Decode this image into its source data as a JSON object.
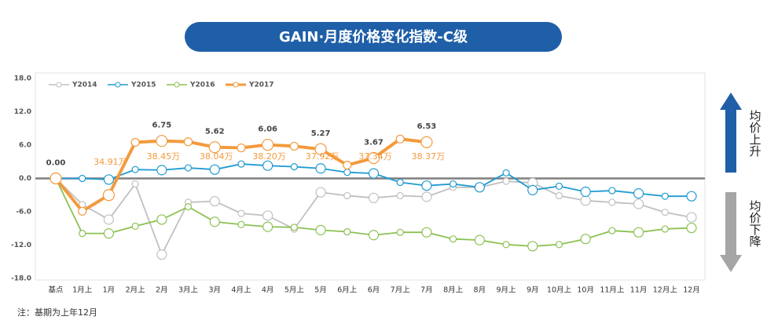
{
  "chart_data": {
    "type": "line",
    "title": "GAIN·月度价格变化指数-C级",
    "categories": [
      "基点",
      "1月上",
      "1月",
      "2月上",
      "2月",
      "3月上",
      "3月",
      "4月上",
      "4月",
      "5月上",
      "5月",
      "6月上",
      "6月",
      "7月上",
      "7月",
      "8月上",
      "8月",
      "9月上",
      "9月",
      "10月上",
      "10月",
      "11月上",
      "11月",
      "12月上",
      "12月"
    ],
    "series": [
      {
        "name": "Y2014",
        "color": "#c0c0c0",
        "values": [
          0,
          -4.7,
          -7.4,
          -1,
          -13.7,
          -4.3,
          -4.1,
          -6.3,
          -6.7,
          -9.1,
          -2.5,
          -3.1,
          -3.5,
          -3.1,
          -3.3,
          -1.6,
          -1.6,
          -0.5,
          -0.8,
          -3.1,
          -4,
          -4.3,
          -4.6,
          -6.1,
          -7
        ]
      },
      {
        "name": "Y2015",
        "color": "#1f9bd1",
        "values": [
          0,
          0,
          -0.2,
          1.6,
          1.5,
          1.9,
          1.6,
          2.6,
          2.3,
          2.1,
          1.8,
          1.1,
          0.9,
          -0.7,
          -1.3,
          -1,
          -1.6,
          1,
          -2.1,
          -1.4,
          -2.4,
          -2.2,
          -2.7,
          -3.2,
          -3.2
        ]
      },
      {
        "name": "Y2016",
        "color": "#8cc152",
        "values": [
          0,
          -9.9,
          -9.9,
          -8.6,
          -7.4,
          -5.1,
          -7.8,
          -8.3,
          -8.7,
          -8.8,
          -9.3,
          -9.6,
          -10.2,
          -9.7,
          -9.7,
          -10.9,
          -11.1,
          -11.9,
          -12.2,
          -11.9,
          -10.9,
          -9.4,
          -9.7,
          -9.1,
          -8.9
        ]
      },
      {
        "name": "Y2017",
        "color": "#f39a3d",
        "values": [
          0,
          -5.9,
          -3,
          6.5,
          6.75,
          6.6,
          5.62,
          5.5,
          6.06,
          5.8,
          5.27,
          2.4,
          3.67,
          7.1,
          6.53,
          null,
          null,
          null,
          null,
          null,
          null,
          null,
          null,
          null,
          null
        ],
        "value_labels": [
          "0.00",
          null,
          null,
          null,
          "6.75",
          null,
          "5.62",
          null,
          "6.06",
          null,
          "5.27",
          null,
          "3.67",
          null,
          "6.53",
          null,
          null,
          null,
          null,
          null,
          null,
          null,
          null,
          null,
          null
        ],
        "price_labels": [
          null,
          null,
          "34.91万",
          null,
          "38.45万",
          null,
          "38.04万",
          null,
          "38.20万",
          null,
          "37.92万",
          null,
          "37.34万",
          null,
          "38.37万",
          null,
          null,
          null,
          null,
          null,
          null,
          null,
          null,
          null,
          null
        ]
      }
    ],
    "ylim": [
      -18,
      18
    ],
    "yticks": [
      {
        "value": -18,
        "label": "-18.0"
      },
      {
        "value": -12,
        "label": "-12.0"
      },
      {
        "value": -6,
        "label": "-6.0"
      },
      {
        "value": 0,
        "label": "0.0"
      },
      {
        "value": 6,
        "label": "6.0"
      },
      {
        "value": 12,
        "label": "12.0"
      },
      {
        "value": 18,
        "label": "18.0"
      }
    ],
    "up_label": "均价上升",
    "down_label": "均价下降",
    "note": "注：基期为上年12月"
  }
}
